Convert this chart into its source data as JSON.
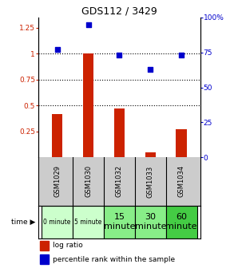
{
  "title": "GDS112 / 3429",
  "samples": [
    "GSM1029",
    "GSM1030",
    "GSM1032",
    "GSM1033",
    "GSM1034"
  ],
  "time_labels": [
    "0 minute",
    "5 minute",
    "15\nminute",
    "30\nminute",
    "60\nminute"
  ],
  "time_colors": [
    "#ccffcc",
    "#ccffcc",
    "#88ee88",
    "#88ee88",
    "#44cc44"
  ],
  "log_ratio": [
    0.42,
    1.0,
    0.47,
    0.05,
    0.27
  ],
  "percentile_rank": [
    77,
    95,
    73,
    63,
    73
  ],
  "bar_color": "#cc2200",
  "dot_color": "#0000cc",
  "ylim_left": [
    0.0,
    1.35
  ],
  "ylim_right": [
    0,
    100
  ],
  "yticks_left": [
    0.25,
    0.5,
    0.75,
    1.0,
    1.25
  ],
  "ytick_labels_left": [
    "0.25",
    "0.5",
    "0.75",
    "1",
    "1.25"
  ],
  "ytick_labels_right": [
    "0",
    "25",
    "50",
    "75",
    "100%"
  ],
  "hlines": [
    0.5,
    0.75,
    1.0
  ],
  "bg_color": "#ffffff",
  "label_area_color": "#cccccc",
  "time_small_fontsize": 5.5,
  "time_large_fontsize": 8
}
